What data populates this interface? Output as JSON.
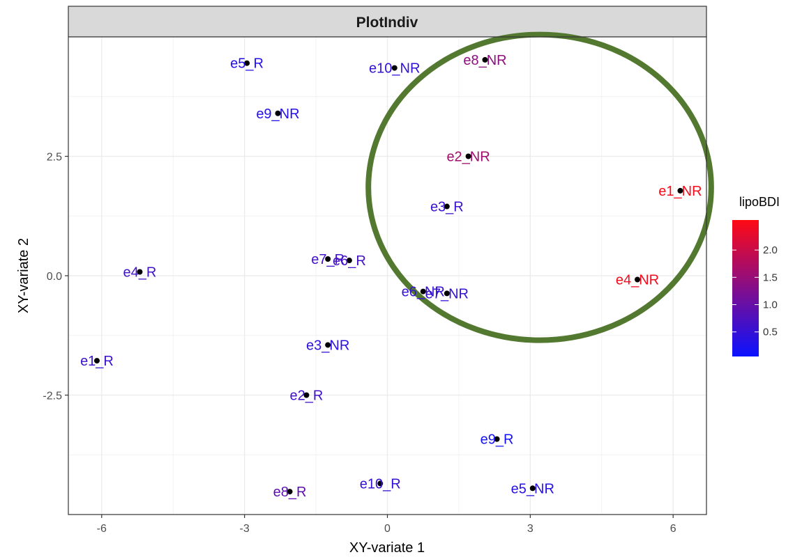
{
  "chart_data": {
    "type": "scatter",
    "title": "PlotIndiv",
    "xlabel": "XY-variate 1",
    "ylabel": "XY-variate 2",
    "xlim": [
      -6.7,
      6.7
    ],
    "ylim": [
      -5.0,
      5.0
    ],
    "xticks": [
      -6,
      -3,
      0,
      3,
      6
    ],
    "xtick_labels": [
      "-6",
      "-3",
      "0",
      "3",
      "6"
    ],
    "yticks": [
      -2.5,
      0.0,
      2.5
    ],
    "ytick_labels": [
      "-2.5",
      "0.0",
      "2.5"
    ],
    "grid": true,
    "legend": {
      "title": "lipoBDI",
      "position": "right",
      "type": "colorbar",
      "range": [
        0.05,
        2.55
      ],
      "ticks": [
        0.5,
        1.0,
        1.5,
        2.0
      ],
      "tick_labels": [
        "0.5",
        "1.0",
        "1.5",
        "2.0"
      ],
      "low_color": "#0a12ff",
      "high_color": "#ff0a14"
    },
    "points": [
      {
        "label": "e5_R",
        "x": -2.95,
        "y": 4.45,
        "lipoBDI": 0.3
      },
      {
        "label": "e10_NR",
        "x": 0.15,
        "y": 4.35,
        "lipoBDI": 0.45
      },
      {
        "label": "e8_NR",
        "x": 2.05,
        "y": 4.52,
        "lipoBDI": 1.4
      },
      {
        "label": "e9_NR",
        "x": -2.3,
        "y": 3.4,
        "lipoBDI": 0.3
      },
      {
        "label": "e2_NR",
        "x": 1.7,
        "y": 2.5,
        "lipoBDI": 1.6
      },
      {
        "label": "e1_NR",
        "x": 6.15,
        "y": 1.78,
        "lipoBDI": 2.5
      },
      {
        "label": "e3_R",
        "x": 1.25,
        "y": 1.45,
        "lipoBDI": 0.55
      },
      {
        "label": "e7_R",
        "x": -1.25,
        "y": 0.35,
        "lipoBDI": 0.6
      },
      {
        "label": "e6_R",
        "x": -0.8,
        "y": 0.32,
        "lipoBDI": 0.65
      },
      {
        "label": "e4_R",
        "x": -5.2,
        "y": 0.08,
        "lipoBDI": 0.6
      },
      {
        "label": "e4_NR",
        "x": 5.25,
        "y": -0.08,
        "lipoBDI": 2.45
      },
      {
        "label": "e6_NR",
        "x": 0.75,
        "y": -0.33,
        "lipoBDI": 0.5
      },
      {
        "label": "e7_NR",
        "x": 1.25,
        "y": -0.37,
        "lipoBDI": 0.5
      },
      {
        "label": "e3_NR",
        "x": -1.25,
        "y": -1.45,
        "lipoBDI": 0.4
      },
      {
        "label": "e1_R",
        "x": -6.1,
        "y": -1.78,
        "lipoBDI": 0.55
      },
      {
        "label": "e2_R",
        "x": -1.7,
        "y": -2.5,
        "lipoBDI": 0.6
      },
      {
        "label": "e9_R",
        "x": 2.3,
        "y": -3.42,
        "lipoBDI": 0.15
      },
      {
        "label": "e10_R",
        "x": -0.15,
        "y": -4.35,
        "lipoBDI": 0.5
      },
      {
        "label": "e8_R",
        "x": -2.05,
        "y": -4.52,
        "lipoBDI": 0.9
      },
      {
        "label": "e5_NR",
        "x": 3.05,
        "y": -4.45,
        "lipoBDI": 0.35
      }
    ],
    "annotation": {
      "shape": "ellipse",
      "color": "#53782f",
      "cx": 3.2,
      "cy": 1.85,
      "rx": 3.6,
      "ry": 3.2
    }
  }
}
